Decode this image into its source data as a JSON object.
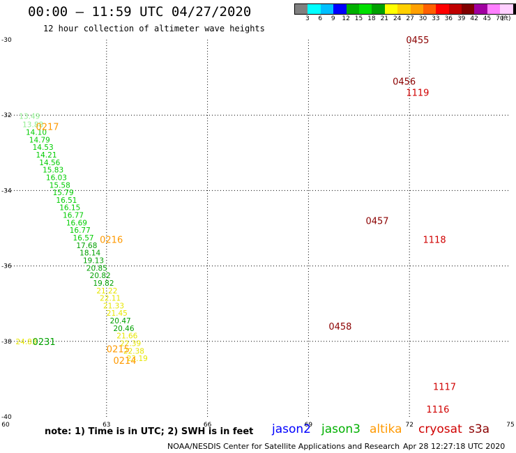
{
  "header": {
    "title": "00:00 — 11:59 UTC 04/27/2020",
    "subtitle": "12 hour collection of altimeter wave heights"
  },
  "color_legend": {
    "colors": [
      "#808080",
      "#00ffff",
      "#00bfff",
      "#0000ff",
      "#00b000",
      "#00e000",
      "#00a000",
      "#ffff00",
      "#ffd000",
      "#ffa000",
      "#ff6000",
      "#ff0000",
      "#c00000",
      "#800000",
      "#a000a0",
      "#ff80ff",
      "#ffd0ff",
      "#000000"
    ],
    "ticks": [
      "3",
      "6",
      "9",
      "12",
      "15",
      "18",
      "21",
      "24",
      "27",
      "30",
      "33",
      "36",
      "39",
      "42",
      "45",
      "70"
    ],
    "unit": "(ft)"
  },
  "note": "note: 1) Time is in UTC; 2) SWH is in feet",
  "satellites": [
    {
      "name": "jason2",
      "color": "#0000ff"
    },
    {
      "name": "jason3",
      "color": "#00b000"
    },
    {
      "name": "altika",
      "color": "#ff9900"
    },
    {
      "name": "cryosat",
      "color": "#d00000"
    },
    {
      "name": "s3a",
      "color": "#8b0000"
    }
  ],
  "footer": {
    "left": "NOAA/NESDIS Center for Satellite Applications and Research",
    "right": "Apr 28 12:27:18 UTC 2020"
  },
  "chart_data": {
    "type": "scatter",
    "xlim": [
      60,
      75
    ],
    "ylim": [
      -40,
      -30
    ],
    "x_ticks": [
      60,
      63,
      66,
      69,
      72,
      75
    ],
    "y_ticks": [
      -30,
      -32,
      -34,
      -36,
      -38,
      -40
    ],
    "grid": true,
    "series": [
      {
        "color": "#00cc00",
        "points": [
          {
            "x": 60.4,
            "y": -32.02,
            "v": "13.49",
            "c": "#90ee90"
          },
          {
            "x": 60.5,
            "y": -32.25,
            "v": "13.88",
            "c": "#90ee90"
          },
          {
            "x": 60.6,
            "y": -32.45,
            "v": "14.10"
          },
          {
            "x": 60.7,
            "y": -32.65,
            "v": "14.79"
          },
          {
            "x": 60.8,
            "y": -32.85,
            "v": "14.53"
          },
          {
            "x": 60.9,
            "y": -33.05,
            "v": "14.21"
          },
          {
            "x": 61.0,
            "y": -33.25,
            "v": "14.56"
          },
          {
            "x": 61.1,
            "y": -33.45,
            "v": "15.83"
          },
          {
            "x": 61.2,
            "y": -33.65,
            "v": "16.03"
          },
          {
            "x": 61.3,
            "y": -33.85,
            "v": "15.58"
          },
          {
            "x": 61.4,
            "y": -34.05,
            "v": "15.79"
          },
          {
            "x": 61.5,
            "y": -34.25,
            "v": "16.51"
          },
          {
            "x": 61.6,
            "y": -34.45,
            "v": "16.15"
          },
          {
            "x": 61.7,
            "y": -34.65,
            "v": "16.77"
          },
          {
            "x": 61.8,
            "y": -34.85,
            "v": "16.69"
          },
          {
            "x": 61.9,
            "y": -35.05,
            "v": "16.77"
          },
          {
            "x": 62.0,
            "y": -35.25,
            "v": "16.57"
          },
          {
            "x": 62.1,
            "y": -35.45,
            "v": "17.68",
            "c": "#00a000"
          },
          {
            "x": 62.2,
            "y": -35.65,
            "v": "18.14",
            "c": "#00a000"
          },
          {
            "x": 62.3,
            "y": -35.85,
            "v": "19.13",
            "c": "#00a000"
          },
          {
            "x": 62.4,
            "y": -36.05,
            "v": "20.85",
            "c": "#00a000"
          },
          {
            "x": 62.5,
            "y": -36.25,
            "v": "20.82",
            "c": "#00a000"
          },
          {
            "x": 62.6,
            "y": -36.45,
            "v": "19.82",
            "c": "#00a000"
          },
          {
            "x": 62.7,
            "y": -36.65,
            "v": "21.22",
            "c": "#e6e600"
          },
          {
            "x": 62.8,
            "y": -36.85,
            "v": "22.11",
            "c": "#e6e600"
          },
          {
            "x": 62.9,
            "y": -37.05,
            "v": "21.33",
            "c": "#e6e600"
          },
          {
            "x": 63.0,
            "y": -37.25,
            "v": "21.45",
            "c": "#e6e600"
          },
          {
            "x": 63.1,
            "y": -37.45,
            "v": "20.47",
            "c": "#00a000"
          },
          {
            "x": 63.2,
            "y": -37.65,
            "v": "20.46",
            "c": "#00a000"
          },
          {
            "x": 63.3,
            "y": -37.85,
            "v": "21.66",
            "c": "#e6e600"
          },
          {
            "x": 63.4,
            "y": -38.05,
            "v": "22.39",
            "c": "#e6e600"
          },
          {
            "x": 63.5,
            "y": -38.25,
            "v": "22.38",
            "c": "#e6e600"
          },
          {
            "x": 63.6,
            "y": -38.45,
            "v": "23.19",
            "c": "#e6e600"
          },
          {
            "x": 60.3,
            "y": -38.0,
            "v": "24.83",
            "c": "#e6e600"
          }
        ]
      }
    ],
    "labels": [
      {
        "text": "0455",
        "x": 71.9,
        "y": -30.0,
        "color": "#8b0000"
      },
      {
        "text": "0456",
        "x": 71.5,
        "y": -31.1,
        "color": "#8b0000"
      },
      {
        "text": "1119",
        "x": 71.9,
        "y": -31.4,
        "color": "#d00000"
      },
      {
        "text": "0217",
        "x": 60.9,
        "y": -32.3,
        "color": "#ff9900"
      },
      {
        "text": "0457",
        "x": 70.7,
        "y": -34.8,
        "color": "#8b0000"
      },
      {
        "text": "1118",
        "x": 72.4,
        "y": -35.3,
        "color": "#d00000"
      },
      {
        "text": "0216",
        "x": 62.8,
        "y": -35.3,
        "color": "#ff9900"
      },
      {
        "text": "0458",
        "x": 69.6,
        "y": -37.6,
        "color": "#8b0000"
      },
      {
        "text": "1117",
        "x": 72.7,
        "y": -39.2,
        "color": "#d00000"
      },
      {
        "text": "0215",
        "x": 63.0,
        "y": -38.2,
        "color": "#ff9900"
      },
      {
        "text": "0231",
        "x": 60.8,
        "y": -38.0,
        "color": "#00a000"
      },
      {
        "text": "0214",
        "x": 63.2,
        "y": -38.5,
        "color": "#ff9900"
      },
      {
        "text": "1116",
        "x": 72.5,
        "y": -39.8,
        "color": "#d00000"
      }
    ]
  }
}
